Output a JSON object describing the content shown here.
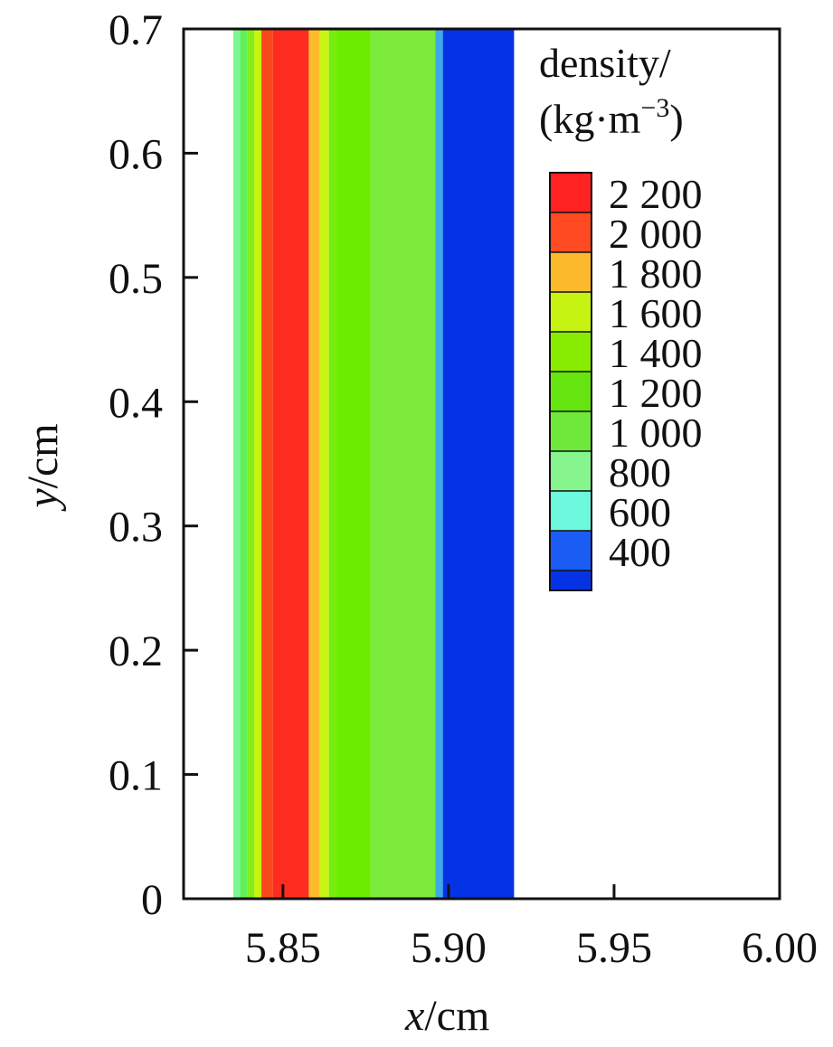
{
  "chart_data": {
    "type": "heatmap",
    "title": "",
    "xlabel": {
      "var": "x",
      "unit": "/cm"
    },
    "ylabel": {
      "var": "y",
      "unit": "/cm"
    },
    "xlim": [
      5.82,
      6.0
    ],
    "ylim": [
      0,
      0.7
    ],
    "x_ticks": [
      {
        "value": 5.85,
        "label": "5.85"
      },
      {
        "value": 5.9,
        "label": "5.90"
      },
      {
        "value": 5.95,
        "label": "5.95"
      },
      {
        "value": 6.0,
        "label": "6.00"
      }
    ],
    "y_ticks": [
      {
        "value": 0,
        "label": "0"
      },
      {
        "value": 0.1,
        "label": "0.1"
      },
      {
        "value": 0.2,
        "label": "0.2"
      },
      {
        "value": 0.3,
        "label": "0.3"
      },
      {
        "value": 0.4,
        "label": "0.4"
      },
      {
        "value": 0.5,
        "label": "0.5"
      },
      {
        "value": 0.6,
        "label": "0.6"
      },
      {
        "value": 0.7,
        "label": "0.7"
      }
    ],
    "bands": [
      {
        "x0": 5.835,
        "x1": 5.837,
        "color": "#7ef792"
      },
      {
        "x0": 5.837,
        "x1": 5.8393,
        "color": "#5ff05d"
      },
      {
        "x0": 5.8393,
        "x1": 5.8414,
        "color": "#86ec16"
      },
      {
        "x0": 5.8414,
        "x1": 5.8435,
        "color": "#c8f50e"
      },
      {
        "x0": 5.8435,
        "x1": 5.847,
        "color": "#fb471c"
      },
      {
        "x0": 5.847,
        "x1": 5.8578,
        "color": "#fe2d20"
      },
      {
        "x0": 5.8578,
        "x1": 5.8612,
        "color": "#fdbb2b"
      },
      {
        "x0": 5.8612,
        "x1": 5.8639,
        "color": "#c8f513"
      },
      {
        "x0": 5.8639,
        "x1": 5.866,
        "color": "#77ed0f"
      },
      {
        "x0": 5.866,
        "x1": 5.8765,
        "color": "#6cec00"
      },
      {
        "x0": 5.8765,
        "x1": 5.896,
        "color": "#7bea3b"
      },
      {
        "x0": 5.896,
        "x1": 5.8983,
        "color": "#3ea8ea"
      },
      {
        "x0": 5.8983,
        "x1": 5.9198,
        "color": "#0433e6"
      }
    ],
    "legend": {
      "title": {
        "line1": "density/",
        "line2_prefix": "(kg·m",
        "line2_sup": "−3",
        "line2_suffix": ")"
      },
      "placement": "top-right",
      "entries": [
        {
          "label": "2 200",
          "color": "#ff2222"
        },
        {
          "label": "2 000",
          "color": "#ff4a22"
        },
        {
          "label": "1 800",
          "color": "#fdb92c"
        },
        {
          "label": "1 600",
          "color": "#c6f311"
        },
        {
          "label": "1 400",
          "color": "#87ec00"
        },
        {
          "label": "1 200",
          "color": "#66e410"
        },
        {
          "label": "1 000",
          "color": "#6ee83a"
        },
        {
          "label": "800",
          "color": "#86f58d"
        },
        {
          "label": "600",
          "color": "#6cf8dc"
        },
        {
          "label": "400",
          "color": "#1b5cf5"
        }
      ],
      "bottom_color": "#0433e6"
    }
  }
}
